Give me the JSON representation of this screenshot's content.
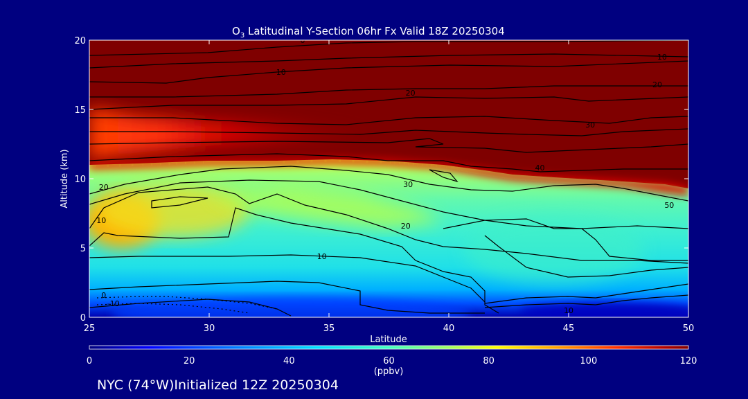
{
  "chart_data": {
    "type": "heatmap",
    "title_main": "O",
    "title_sub": "3",
    "title_rest": " Latitudinal Y-Section 06hr  Fx Valid 18Z 20250304",
    "xlabel": "Latitude",
    "ylabel": "Altitude (km)",
    "xlim": [
      25,
      50
    ],
    "ylim": [
      0,
      20
    ],
    "x_ticks": [
      "25",
      "30",
      "35",
      "40",
      "45",
      "50"
    ],
    "y_ticks": [
      "0",
      "5",
      "10",
      "15",
      "20"
    ],
    "colorbar": {
      "ticks": [
        "0",
        "20",
        "40",
        "60",
        "80",
        "100",
        "120"
      ],
      "unit_label": "(ppbv)",
      "range": [
        0,
        120
      ]
    },
    "footer": "NYC (74°W)Initialized 12Z 20250304",
    "contour_labels": [
      {
        "text": "0",
        "lat": 33.9,
        "alt": 20.0
      },
      {
        "text": "10",
        "lat": 33.0,
        "alt": 17.7
      },
      {
        "text": "20",
        "lat": 38.4,
        "alt": 16.2
      },
      {
        "text": "10",
        "lat": 48.9,
        "alt": 18.8
      },
      {
        "text": "20",
        "lat": 48.7,
        "alt": 16.8
      },
      {
        "text": "30",
        "lat": 45.9,
        "alt": 13.9
      },
      {
        "text": "40",
        "lat": 43.8,
        "alt": 10.8
      },
      {
        "text": "30",
        "lat": 38.3,
        "alt": 9.6
      },
      {
        "text": "50",
        "lat": 49.2,
        "alt": 8.1
      },
      {
        "text": "20",
        "lat": 25.6,
        "alt": 9.4
      },
      {
        "text": "10",
        "lat": 25.5,
        "alt": 7.0
      },
      {
        "text": "20",
        "lat": 38.2,
        "alt": 6.6
      },
      {
        "text": "10",
        "lat": 34.7,
        "alt": 4.4
      },
      {
        "text": "0",
        "lat": 25.6,
        "alt": 1.6
      },
      {
        "text": "-10",
        "lat": 26.0,
        "alt": 1.0
      },
      {
        "text": "10",
        "lat": 45.0,
        "alt": 0.5
      }
    ]
  },
  "colors": {
    "background": "#000080",
    "text": "#ffffff",
    "contour": "#000000",
    "colormap": [
      "#00007f",
      "#0000ff",
      "#0080ff",
      "#00e0ff",
      "#40ffc0",
      "#a0ff60",
      "#ffff00",
      "#ffa000",
      "#ff3000",
      "#a00000",
      "#7f0000"
    ]
  }
}
